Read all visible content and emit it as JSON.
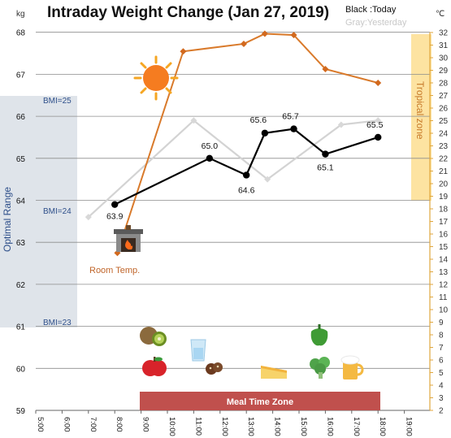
{
  "chart_data": {
    "type": "line",
    "title": "Intraday Weight Change (Jan 27, 2019)",
    "legend_today": "Black :Today",
    "legend_yesterday": "Gray:Yesterday",
    "y_unit": "kg",
    "y2_unit": "℃",
    "x_ticks": [
      "5:00",
      "6:00",
      "7:00",
      "8:00",
      "9:00",
      "10:00",
      "11:00",
      "12:00",
      "13:00",
      "14:00",
      "15:00",
      "16:00",
      "17:00",
      "18:00",
      "19:00"
    ],
    "y_ticks": [
      "59",
      "60",
      "61",
      "62",
      "63",
      "64",
      "65",
      "66",
      "67",
      "68"
    ],
    "y2_ticks": [
      "2",
      "3",
      "4",
      "5",
      "6",
      "7",
      "8",
      "9",
      "10",
      "11",
      "12",
      "13",
      "14",
      "15",
      "16",
      "17",
      "18",
      "19",
      "20",
      "21",
      "22",
      "23",
      "24",
      "25",
      "26",
      "27",
      "28",
      "29",
      "30",
      "31",
      "32"
    ],
    "ylim": [
      59,
      68
    ],
    "y2lim": [
      2,
      32
    ],
    "xlim": [
      5,
      19
    ],
    "grid": true,
    "series": [
      {
        "name": "Today",
        "color": "#000000",
        "x": [
          8.0,
          11.6,
          13.0,
          13.7,
          14.8,
          16.0,
          18.0
        ],
        "y": [
          63.9,
          65.0,
          64.6,
          65.6,
          65.7,
          65.1,
          65.5
        ],
        "labels": [
          "63.9",
          "65.0",
          "64.6",
          "65.6",
          "65.7",
          "65.1",
          "65.5"
        ]
      },
      {
        "name": "Yesterday",
        "color": "#d3d3d3",
        "x": [
          7.0,
          11.0,
          13.8,
          16.6,
          18.0
        ],
        "y": [
          63.6,
          65.9,
          64.5,
          65.8,
          65.9
        ]
      },
      {
        "name": "Room Temp.",
        "axis": "y2",
        "color": "#d97a2b",
        "x": [
          8.1,
          10.6,
          12.9,
          13.7,
          14.8,
          16.0,
          18.0
        ],
        "y": [
          14.5,
          30.5,
          31.1,
          31.9,
          31.8,
          29.1,
          28.0
        ]
      }
    ],
    "annotations": {
      "bmi_25": "BMI=25",
      "bmi_24": "BMI=24",
      "bmi_23": "BMI=23",
      "optimal_range": "Optimal Range",
      "tropical_zone": "Tropical zone",
      "room_temp": "Room Temp.",
      "meal_time_zone": "Meal Time Zone"
    },
    "colors": {
      "optimal_band": "#dfe4ea",
      "tropical_band": "#fde3a1",
      "meal_bar": "#c0504d",
      "right_axis": "#e0a63c"
    },
    "icons": [
      "sun-icon",
      "fireplace-icon",
      "kiwi-icon",
      "apple-icon",
      "water-glass-icon",
      "cookies-icon",
      "cake-icon",
      "green-pepper-icon",
      "broccoli-icon",
      "beer-icon"
    ]
  }
}
